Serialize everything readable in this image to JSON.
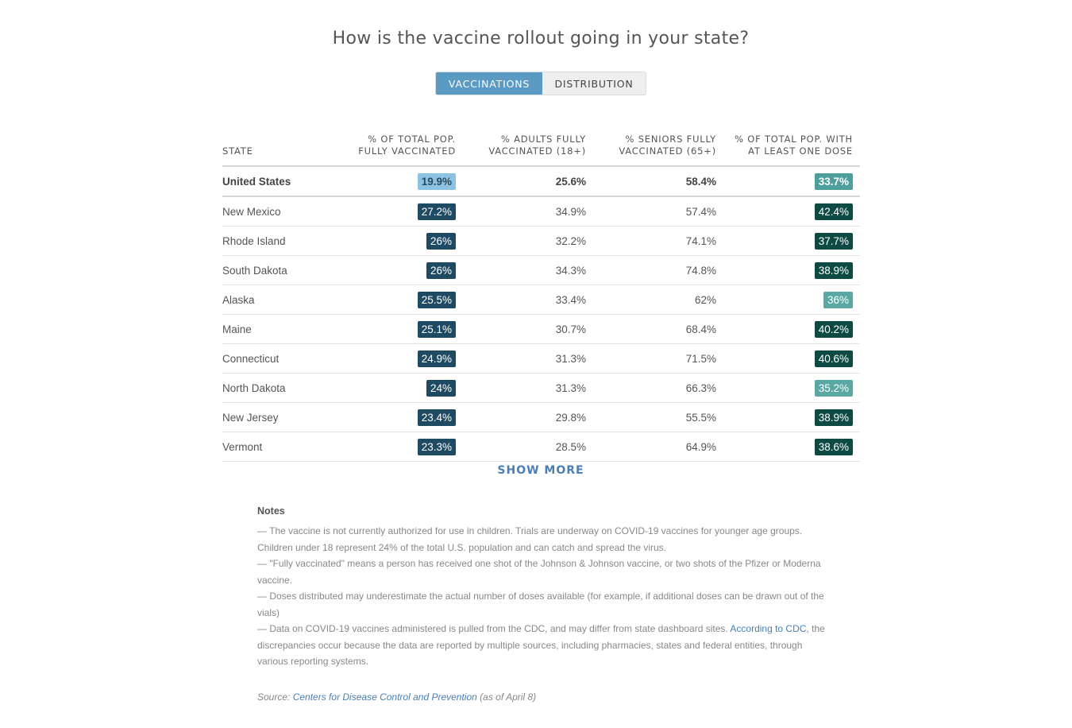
{
  "title": "How is the vaccine rollout going in your state?",
  "tabs": [
    {
      "label": "VACCINATIONS",
      "active": true
    },
    {
      "label": "DISTRIBUTION",
      "active": false
    }
  ],
  "table": {
    "headers": {
      "state": "STATE",
      "col1": [
        "% OF TOTAL POP.",
        "FULLY VACCINATED"
      ],
      "col2": [
        "% ADULTS FULLY",
        "VACCINATED (18+)"
      ],
      "col3": [
        "% SENIORS FULLY",
        "VACCINATED (65+)"
      ],
      "col4": [
        "% OF TOTAL POP. WITH",
        "AT LEAST ONE DOSE"
      ]
    },
    "rows": [
      {
        "state": "United States",
        "fully": "19.9%",
        "adults": "25.6%",
        "seniors": "58.4%",
        "one_dose": "33.7%",
        "fully_color": "#8cc3e3",
        "one_dose_color": "#4e9e9c",
        "fully_text": "#2a4a62",
        "one_dose_text": "#ffffff"
      },
      {
        "state": "New Mexico",
        "fully": "27.2%",
        "adults": "34.9%",
        "seniors": "57.4%",
        "one_dose": "42.4%",
        "fully_color": "#1f4a63",
        "one_dose_color": "#0e4a44"
      },
      {
        "state": "Rhode Island",
        "fully": "26%",
        "adults": "32.2%",
        "seniors": "74.1%",
        "one_dose": "37.7%",
        "fully_color": "#1f4a63",
        "one_dose_color": "#0e4a44"
      },
      {
        "state": "South Dakota",
        "fully": "26%",
        "adults": "34.3%",
        "seniors": "74.8%",
        "one_dose": "38.9%",
        "fully_color": "#1f4a63",
        "one_dose_color": "#0e4a44"
      },
      {
        "state": "Alaska",
        "fully": "25.5%",
        "adults": "33.4%",
        "seniors": "62%",
        "one_dose": "36%",
        "fully_color": "#1f4a63",
        "one_dose_color": "#5aa8a4"
      },
      {
        "state": "Maine",
        "fully": "25.1%",
        "adults": "30.7%",
        "seniors": "68.4%",
        "one_dose": "40.2%",
        "fully_color": "#1f4a63",
        "one_dose_color": "#0e4a44"
      },
      {
        "state": "Connecticut",
        "fully": "24.9%",
        "adults": "31.3%",
        "seniors": "71.5%",
        "one_dose": "40.6%",
        "fully_color": "#1f4a63",
        "one_dose_color": "#0e4a44"
      },
      {
        "state": "North Dakota",
        "fully": "24%",
        "adults": "31.3%",
        "seniors": "66.3%",
        "one_dose": "35.2%",
        "fully_color": "#1f4a63",
        "one_dose_color": "#5aa8a4"
      },
      {
        "state": "New Jersey",
        "fully": "23.4%",
        "adults": "29.8%",
        "seniors": "55.5%",
        "one_dose": "38.9%",
        "fully_color": "#1f4a63",
        "one_dose_color": "#0e4a44"
      },
      {
        "state": "Vermont",
        "fully": "23.3%",
        "adults": "28.5%",
        "seniors": "64.9%",
        "one_dose": "38.6%",
        "fully_color": "#1f4a63",
        "one_dose_color": "#0e4a44"
      }
    ]
  },
  "show_more": "SHOW MORE",
  "notes": {
    "title": "Notes",
    "items": [
      "— The vaccine is not currently authorized for use in children. Trials are underway on COVID-19 vaccines for younger age groups. Children under 18 represent 24% of the total U.S. population and can catch and spread the virus.",
      "— \"Fully vaccinated\" means a person has received one shot of the Johnson & Johnson vaccine, or two shots of the Pfizer or Moderna vaccine.",
      "— Doses distributed may underestimate the actual number of doses available (for example, if additional doses can be drawn out of the vials)"
    ],
    "last_pre": "— Data on COVID-19 vaccines administered is pulled from the CDC, and may differ from state dashboard sites. ",
    "last_link": "According to CDC",
    "last_post": ", the discrepancies occur because the data are reported by multiple sources, including pharmacies, states and federal entities, through various reporting systems."
  },
  "source": {
    "prefix": "Source: ",
    "link": "Centers for Disease Control and Prevention",
    "suffix": " (as of April 8)"
  }
}
